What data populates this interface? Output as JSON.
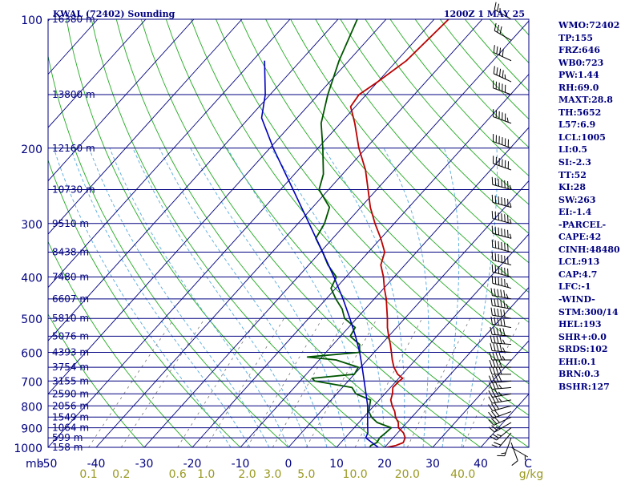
{
  "header": {
    "station_title": "KWAL (72402) Sounding",
    "time_label": "1200Z  1 MAY 25"
  },
  "colors": {
    "navy": "#000080",
    "isotherm": "#000080",
    "dry_adiabat": "#22aa22",
    "moist_adiabat": "#55aadd",
    "mixing_ratio": "#777777",
    "temperature": "#bb0000",
    "dewpoint": "#005500",
    "parcel": "#0000bb",
    "mixing_label": "#999922"
  },
  "chart_data": {
    "type": "line",
    "pressure_axis": {
      "scale": "log",
      "range": [
        1000,
        100
      ],
      "labels": [
        "100",
        "200",
        "300",
        "400",
        "500",
        "600",
        "700",
        "800",
        "900",
        "1000"
      ],
      "unit": "mb"
    },
    "temperature_axis": {
      "range": [
        -50,
        50
      ],
      "skewed": true,
      "labels": [
        "-50",
        "-40",
        "-30",
        "-20",
        "-10",
        "0",
        "10",
        "20",
        "30",
        "40"
      ],
      "end_label": "C"
    },
    "mixing_ratio_axis": {
      "labels": [
        "0.1",
        "0.2",
        "0.6",
        "1.0",
        "2.0",
        "3.0",
        "5.0",
        "10.0",
        "20.0",
        "40.0"
      ],
      "values": [
        0.1,
        0.2,
        0.6,
        1.0,
        2.0,
        3.0,
        5.0,
        10.0,
        20.0,
        40.0
      ],
      "unit": "g/kg"
    },
    "height_levels": [
      {
        "p": 100,
        "label": "16380 m"
      },
      {
        "p": 150,
        "label": "13800 m"
      },
      {
        "p": 200,
        "label": "12160 m"
      },
      {
        "p": 250,
        "label": "10730 m"
      },
      {
        "p": 300,
        "label": "9510 m"
      },
      {
        "p": 350,
        "label": "8438 m"
      },
      {
        "p": 400,
        "label": "7480 m"
      },
      {
        "p": 450,
        "label": "6607 m"
      },
      {
        "p": 500,
        "label": "5810 m"
      },
      {
        "p": 550,
        "label": "5076 m"
      },
      {
        "p": 600,
        "label": "4393 m"
      },
      {
        "p": 650,
        "label": "3754 m"
      },
      {
        "p": 700,
        "label": "3155 m"
      },
      {
        "p": 750,
        "label": "2590 m"
      },
      {
        "p": 800,
        "label": "2056 m"
      },
      {
        "p": 850,
        "label": "1549 m"
      },
      {
        "p": 900,
        "label": "1064 m"
      },
      {
        "p": 950,
        "label": "599 m"
      },
      {
        "p": 1000,
        "label": "158 m"
      }
    ],
    "series": [
      {
        "role": "temperature",
        "points": [
          [
            1004,
            19.0
          ],
          [
            1000,
            20.5
          ],
          [
            990,
            22.0
          ],
          [
            975,
            23.0
          ],
          [
            950,
            22.5
          ],
          [
            925,
            21.2
          ],
          [
            900,
            19.2
          ],
          [
            875,
            18.2
          ],
          [
            850,
            16.6
          ],
          [
            825,
            15.4
          ],
          [
            800,
            13.8
          ],
          [
            775,
            12.4
          ],
          [
            750,
            11.6
          ],
          [
            725,
            10.5
          ],
          [
            700,
            10.6
          ],
          [
            690,
            10.8
          ],
          [
            675,
            9.0
          ],
          [
            650,
            6.9
          ],
          [
            625,
            5.2
          ],
          [
            600,
            3.6
          ],
          [
            575,
            1.9
          ],
          [
            550,
            0.0
          ],
          [
            525,
            -1.9
          ],
          [
            500,
            -3.6
          ],
          [
            475,
            -5.5
          ],
          [
            450,
            -7.5
          ],
          [
            425,
            -9.9
          ],
          [
            400,
            -12.2
          ],
          [
            375,
            -15.0
          ],
          [
            350,
            -16.6
          ],
          [
            325,
            -20.0
          ],
          [
            300,
            -24.0
          ],
          [
            275,
            -28.0
          ],
          [
            250,
            -31.8
          ],
          [
            225,
            -36.0
          ],
          [
            200,
            -41.5
          ],
          [
            175,
            -47.0
          ],
          [
            160,
            -51.0
          ],
          [
            150,
            -51.5
          ],
          [
            140,
            -50.0
          ],
          [
            125,
            -48.0
          ],
          [
            100,
            -47.0
          ]
        ]
      },
      {
        "role": "dewpoint",
        "points": [
          [
            1004,
            17.4
          ],
          [
            1000,
            16.9
          ],
          [
            990,
            16.8
          ],
          [
            975,
            17.5
          ],
          [
            950,
            17.2
          ],
          [
            925,
            17.5
          ],
          [
            900,
            17.7
          ],
          [
            875,
            13.8
          ],
          [
            850,
            11.6
          ],
          [
            825,
            10.0
          ],
          [
            800,
            9.1
          ],
          [
            775,
            8.2
          ],
          [
            750,
            4.0
          ],
          [
            725,
            2.0
          ],
          [
            700,
            -7.0
          ],
          [
            690,
            -8.0
          ],
          [
            675,
            0.0
          ],
          [
            650,
            -0.5
          ],
          [
            625,
            -6.5
          ],
          [
            615,
            -13.0
          ],
          [
            600,
            -3.0
          ],
          [
            575,
            -4.5
          ],
          [
            550,
            -8.0
          ],
          [
            525,
            -8.6
          ],
          [
            500,
            -12.5
          ],
          [
            475,
            -14.8
          ],
          [
            450,
            -18.0
          ],
          [
            425,
            -21.0
          ],
          [
            400,
            -22.0
          ],
          [
            375,
            -26.0
          ],
          [
            350,
            -29.5
          ],
          [
            325,
            -33.5
          ],
          [
            300,
            -34.5
          ],
          [
            275,
            -36.5
          ],
          [
            250,
            -42.0
          ],
          [
            230,
            -44.0
          ],
          [
            200,
            -49.0
          ],
          [
            175,
            -54.0
          ],
          [
            150,
            -58.0
          ],
          [
            125,
            -62.0
          ],
          [
            100,
            -66.0
          ]
        ]
      },
      {
        "role": "parcel",
        "points": [
          [
            1004,
            19.0
          ],
          [
            975,
            16.5
          ],
          [
            950,
            14.3
          ],
          [
            925,
            13.8
          ],
          [
            900,
            12.8
          ],
          [
            850,
            10.8
          ],
          [
            800,
            8.7
          ],
          [
            750,
            6.1
          ],
          [
            700,
            3.3
          ],
          [
            650,
            0.3
          ],
          [
            600,
            -3.0
          ],
          [
            550,
            -6.9
          ],
          [
            500,
            -11.4
          ],
          [
            450,
            -16.5
          ],
          [
            400,
            -22.5
          ],
          [
            350,
            -29.5
          ],
          [
            300,
            -37.7
          ],
          [
            250,
            -47.4
          ],
          [
            200,
            -59.3
          ],
          [
            170,
            -67.4
          ],
          [
            150,
            -71.0
          ],
          [
            125,
            -77.5
          ]
        ]
      }
    ],
    "wind_barbs": [
      {
        "p": 1000,
        "dir": 120,
        "spd": 5
      },
      {
        "p": 975,
        "dir": 160,
        "spd": 10
      },
      {
        "p": 950,
        "dir": 200,
        "spd": 15
      },
      {
        "p": 925,
        "dir": 220,
        "spd": 20
      },
      {
        "p": 900,
        "dir": 230,
        "spd": 25
      },
      {
        "p": 875,
        "dir": 240,
        "spd": 25
      },
      {
        "p": 850,
        "dir": 245,
        "spd": 30
      },
      {
        "p": 825,
        "dir": 250,
        "spd": 30
      },
      {
        "p": 800,
        "dir": 255,
        "spd": 30
      },
      {
        "p": 775,
        "dir": 260,
        "spd": 35
      },
      {
        "p": 750,
        "dir": 260,
        "spd": 35
      },
      {
        "p": 725,
        "dir": 265,
        "spd": 35
      },
      {
        "p": 700,
        "dir": 265,
        "spd": 40
      },
      {
        "p": 675,
        "dir": 270,
        "spd": 40
      },
      {
        "p": 650,
        "dir": 270,
        "spd": 40
      },
      {
        "p": 625,
        "dir": 270,
        "spd": 45
      },
      {
        "p": 600,
        "dir": 275,
        "spd": 45
      },
      {
        "p": 575,
        "dir": 275,
        "spd": 45
      },
      {
        "p": 550,
        "dir": 275,
        "spd": 50
      },
      {
        "p": 525,
        "dir": 280,
        "spd": 50
      },
      {
        "p": 500,
        "dir": 280,
        "spd": 50
      },
      {
        "p": 475,
        "dir": 280,
        "spd": 55
      },
      {
        "p": 450,
        "dir": 280,
        "spd": 55
      },
      {
        "p": 425,
        "dir": 285,
        "spd": 55
      },
      {
        "p": 400,
        "dir": 285,
        "spd": 60
      },
      {
        "p": 375,
        "dir": 285,
        "spd": 60
      },
      {
        "p": 350,
        "dir": 285,
        "spd": 60
      },
      {
        "p": 325,
        "dir": 285,
        "spd": 65
      },
      {
        "p": 300,
        "dir": 285,
        "spd": 65
      },
      {
        "p": 275,
        "dir": 285,
        "spd": 65
      },
      {
        "p": 250,
        "dir": 285,
        "spd": 65
      },
      {
        "p": 225,
        "dir": 290,
        "spd": 60
      },
      {
        "p": 200,
        "dir": 290,
        "spd": 60
      },
      {
        "p": 175,
        "dir": 290,
        "spd": 55
      },
      {
        "p": 150,
        "dir": 290,
        "spd": 50
      },
      {
        "p": 140,
        "dir": 295,
        "spd": 45
      },
      {
        "p": 125,
        "dir": 295,
        "spd": 40
      },
      {
        "p": 112,
        "dir": 300,
        "spd": 30
      },
      {
        "p": 100,
        "dir": 300,
        "spd": 25
      }
    ]
  },
  "indices": [
    "WMO:72402",
    "TP:155",
    "FRZ:646",
    "WB0:723",
    "PW:1.44",
    "RH:69.0",
    "MAXT:28.8",
    "TH:5652",
    "L57:6.9",
    "LCL:1005",
    "LI:0.5",
    "SI:-2.3",
    "TT:52",
    "KI:28",
    "SW:263",
    "EI:-1.4",
    "-PARCEL-",
    "CAPE:42",
    "CINH:48480",
    "LCL:913",
    "CAP:4.7",
    "LFC:-1",
    "-WIND-",
    "STM:300/14",
    "HEL:193",
    "SHR+:0.0",
    "SRDS:102",
    "EHI:0.1",
    "BRN:0.3",
    "BSHR:127"
  ]
}
